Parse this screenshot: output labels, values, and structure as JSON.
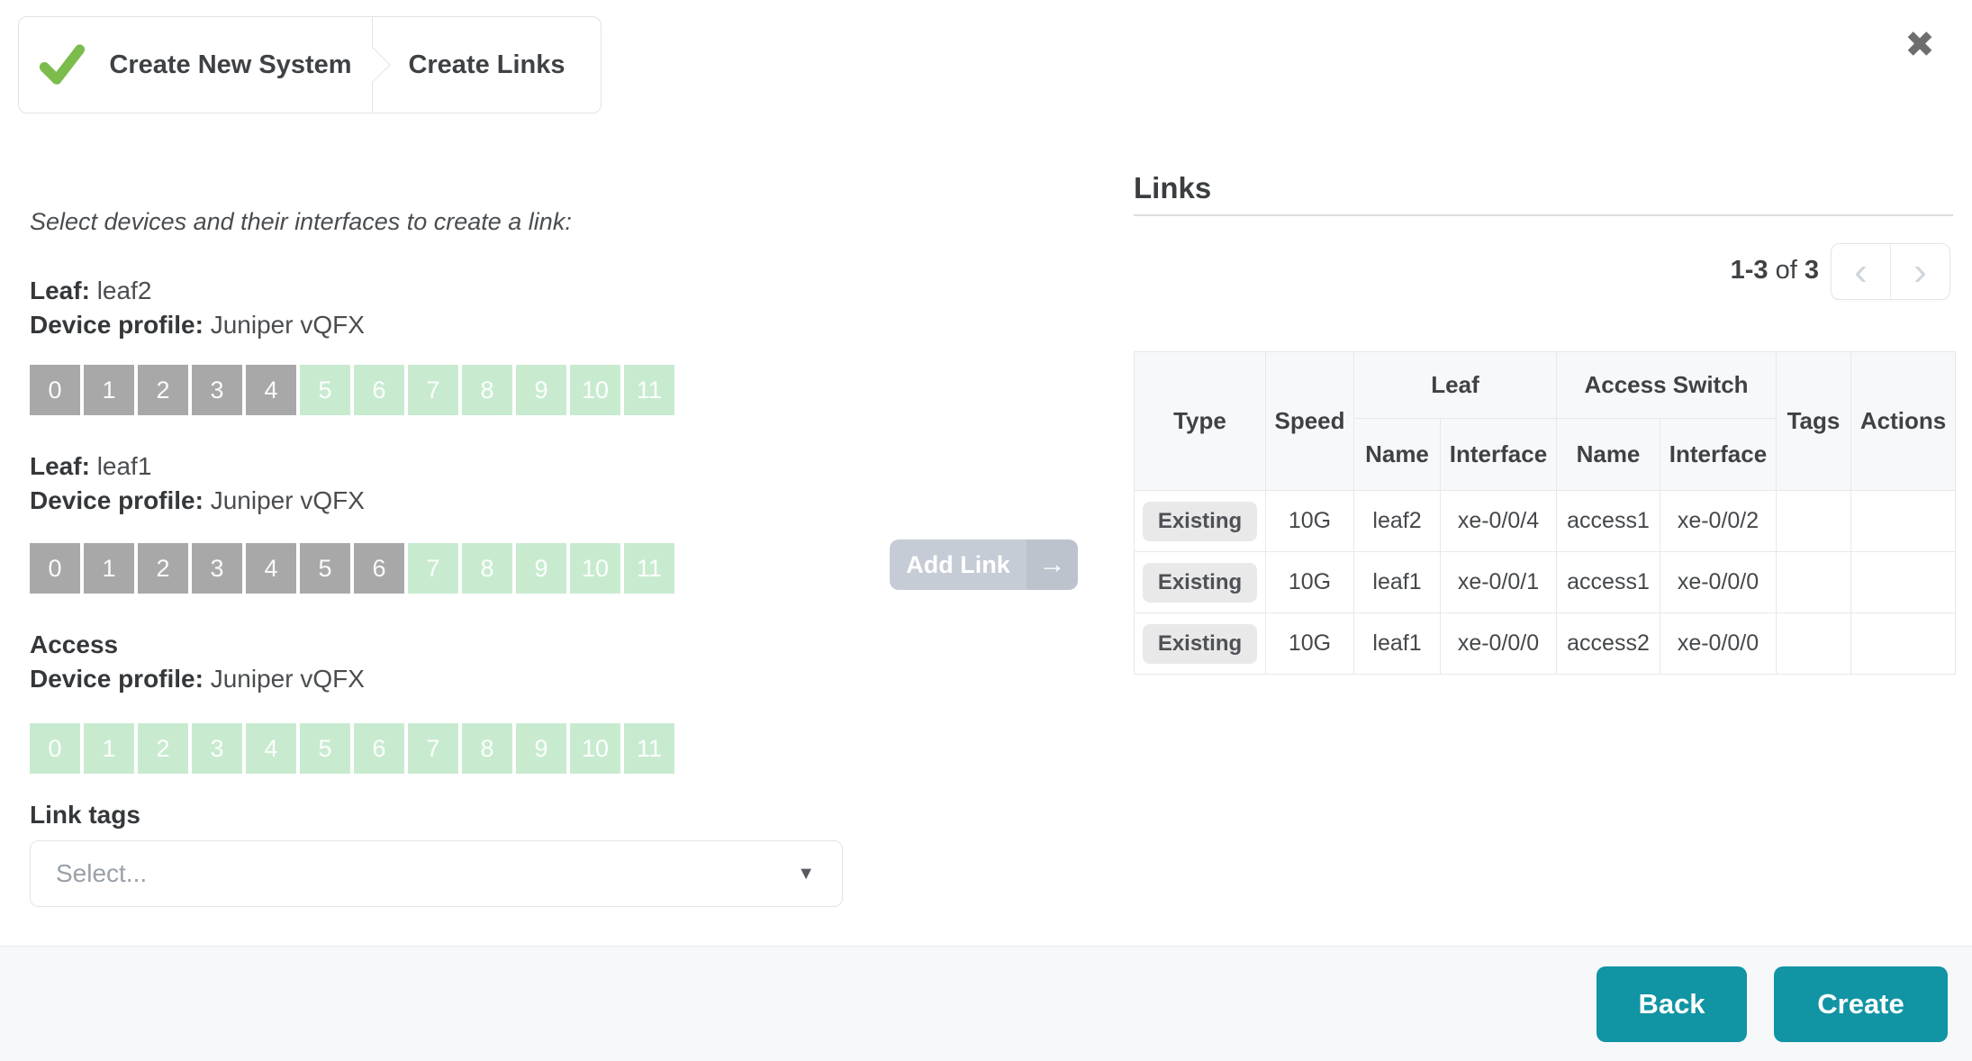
{
  "wizard": {
    "steps": [
      {
        "label": "Create New System",
        "completed": true
      },
      {
        "label": "Create Links",
        "completed": false
      }
    ]
  },
  "icons": {
    "close": "✖",
    "prev": "‹",
    "next": "›",
    "caret": "▼",
    "arrow": "→"
  },
  "instruction": "Select devices and their interfaces to create a link:",
  "devices": [
    {
      "title_label": "Leaf:",
      "title_value": "leaf2",
      "profile_label": "Device profile:",
      "profile_value": "Juniper vQFX",
      "ports": [
        {
          "label": "0",
          "state": "used"
        },
        {
          "label": "1",
          "state": "used"
        },
        {
          "label": "2",
          "state": "used"
        },
        {
          "label": "3",
          "state": "used"
        },
        {
          "label": "4",
          "state": "used"
        },
        {
          "label": "5",
          "state": "available"
        },
        {
          "label": "6",
          "state": "available"
        },
        {
          "label": "7",
          "state": "available"
        },
        {
          "label": "8",
          "state": "available"
        },
        {
          "label": "9",
          "state": "available"
        },
        {
          "label": "10",
          "state": "available"
        },
        {
          "label": "11",
          "state": "available"
        }
      ]
    },
    {
      "title_label": "Leaf:",
      "title_value": "leaf1",
      "profile_label": "Device profile:",
      "profile_value": "Juniper vQFX",
      "ports": [
        {
          "label": "0",
          "state": "used"
        },
        {
          "label": "1",
          "state": "used"
        },
        {
          "label": "2",
          "state": "used"
        },
        {
          "label": "3",
          "state": "used"
        },
        {
          "label": "4",
          "state": "used"
        },
        {
          "label": "5",
          "state": "used"
        },
        {
          "label": "6",
          "state": "used"
        },
        {
          "label": "7",
          "state": "available"
        },
        {
          "label": "8",
          "state": "available"
        },
        {
          "label": "9",
          "state": "available"
        },
        {
          "label": "10",
          "state": "available"
        },
        {
          "label": "11",
          "state": "available"
        }
      ]
    },
    {
      "title_label": "Access",
      "title_value": "",
      "profile_label": "Device profile:",
      "profile_value": "Juniper vQFX",
      "ports": [
        {
          "label": "0",
          "state": "available"
        },
        {
          "label": "1",
          "state": "available"
        },
        {
          "label": "2",
          "state": "available"
        },
        {
          "label": "3",
          "state": "available"
        },
        {
          "label": "4",
          "state": "available"
        },
        {
          "label": "5",
          "state": "available"
        },
        {
          "label": "6",
          "state": "available"
        },
        {
          "label": "7",
          "state": "available"
        },
        {
          "label": "8",
          "state": "available"
        },
        {
          "label": "9",
          "state": "available"
        },
        {
          "label": "10",
          "state": "available"
        },
        {
          "label": "11",
          "state": "available"
        }
      ]
    }
  ],
  "link_tags": {
    "label": "Link tags",
    "placeholder": "Select..."
  },
  "add_link": {
    "label": "Add Link",
    "enabled": false
  },
  "links": {
    "title": "Links",
    "pagination": {
      "range": "1-3",
      "of": "of",
      "total": "3"
    },
    "headers": {
      "type": "Type",
      "speed": "Speed",
      "leaf": "Leaf",
      "access_switch": "Access Switch",
      "name": "Name",
      "interface": "Interface",
      "tags": "Tags",
      "actions": "Actions"
    },
    "rows": [
      {
        "type": "Existing",
        "speed": "10G",
        "leaf_name": "leaf2",
        "leaf_interface": "xe-0/0/4",
        "access_name": "access1",
        "access_interface": "xe-0/0/2",
        "tags": "",
        "actions": ""
      },
      {
        "type": "Existing",
        "speed": "10G",
        "leaf_name": "leaf1",
        "leaf_interface": "xe-0/0/1",
        "access_name": "access1",
        "access_interface": "xe-0/0/0",
        "tags": "",
        "actions": ""
      },
      {
        "type": "Existing",
        "speed": "10G",
        "leaf_name": "leaf1",
        "leaf_interface": "xe-0/0/0",
        "access_name": "access2",
        "access_interface": "xe-0/0/0",
        "tags": "",
        "actions": ""
      }
    ]
  },
  "footer": {
    "back_label": "Back",
    "create_label": "Create"
  },
  "colors": {
    "accent": "#1194a4",
    "check_green": "#7bbc4d",
    "port_used": "#a8a8a8",
    "port_available": "#c8ebd0"
  }
}
